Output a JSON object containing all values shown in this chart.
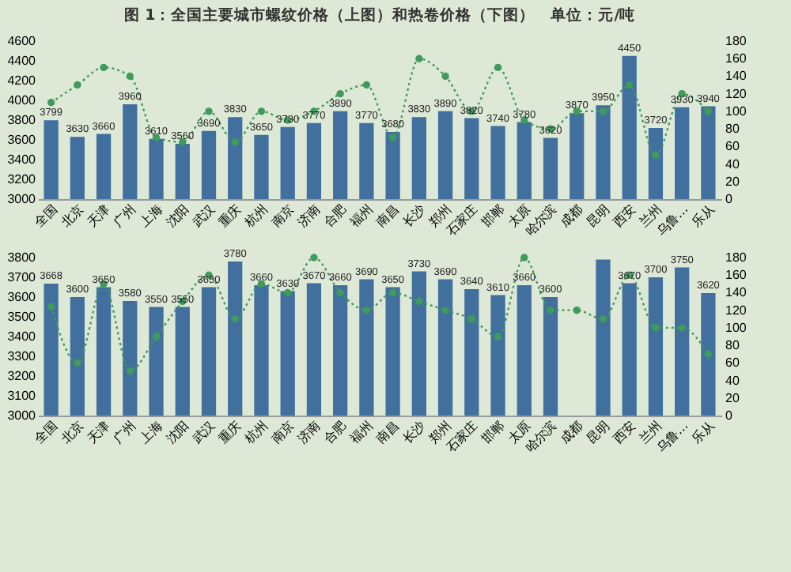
{
  "chart_data": [
    {
      "type": "bar",
      "title": "图 1：全国主要城市螺纹价格（上图）和热卷价格（下图）　单位：元/吨",
      "categories": [
        "全国",
        "北京",
        "天津",
        "广州",
        "上海",
        "沈阳",
        "武汉",
        "重庆",
        "杭州",
        "南京",
        "济南",
        "合肥",
        "福州",
        "南昌",
        "长沙",
        "郑州",
        "石家庄",
        "邯郸",
        "太原",
        "哈尔滨",
        "成都",
        "昆明",
        "西安",
        "兰州",
        "乌鲁…",
        "乐从"
      ],
      "series": [
        {
          "color": "#41709f",
          "values": [
            3799,
            3630,
            3660,
            3960,
            3610,
            3560,
            3690,
            3830,
            3650,
            3730,
            3770,
            3890,
            3770,
            3680,
            3830,
            3890,
            3820,
            3740,
            3780,
            3620,
            3870,
            3950,
            4450,
            3720,
            3930,
            3940
          ],
          "data_labels": true
        },
        {
          "type": "line",
          "axis": "y2",
          "color": "#3f9a5c",
          "marker": "circle",
          "line_style": "dotted",
          "values": [
            110,
            130,
            150,
            140,
            70,
            65,
            100,
            65,
            100,
            90,
            100,
            120,
            130,
            70,
            160,
            140,
            100,
            150,
            90,
            80,
            100,
            100,
            130,
            50,
            120,
            100
          ]
        }
      ],
      "ylim": [
        3000,
        4600
      ],
      "yticks": [
        3000,
        3200,
        3400,
        3600,
        3800,
        4000,
        4200,
        4400,
        4600
      ],
      "y2lim": [
        0,
        180
      ],
      "y2ticks": [
        0,
        20,
        40,
        60,
        80,
        100,
        120,
        140,
        160,
        180
      ]
    },
    {
      "type": "bar",
      "categories": [
        "全国",
        "北京",
        "天津",
        "广州",
        "上海",
        "沈阳",
        "武汉",
        "重庆",
        "杭州",
        "南京",
        "济南",
        "合肥",
        "福州",
        "南昌",
        "长沙",
        "郑州",
        "石家庄",
        "邯郸",
        "太原",
        "哈尔滨",
        "成都",
        "昆明",
        "西安",
        "兰州",
        "乌鲁…",
        "乐从"
      ],
      "series": [
        {
          "color": "#41709f",
          "values": [
            3668,
            3600,
            3650,
            3580,
            3550,
            3550,
            3650,
            3780,
            3660,
            3630,
            3670,
            3660,
            3690,
            3650,
            3730,
            3690,
            3640,
            3610,
            3660,
            3600,
            null,
            3790,
            3670,
            3700,
            3750,
            3620
          ],
          "value_labels": [
            "3668",
            "3600",
            "3650",
            "3580",
            "3550",
            "3550",
            "3650",
            "3780",
            "3660",
            "3630",
            "3670",
            "3660",
            "3690",
            "3650",
            "3730",
            "3690",
            "3640",
            "3610",
            "3660",
            "3600",
            null,
            null,
            "3670",
            "3700",
            "3750",
            "3620"
          ]
        },
        {
          "type": "line",
          "axis": "y2",
          "color": "#3f9a5c",
          "marker": "circle",
          "line_style": "dotted",
          "values": [
            124,
            60,
            150,
            51,
            90,
            130,
            160,
            110,
            150,
            140,
            180,
            140,
            120,
            140,
            130,
            120,
            110,
            90,
            180,
            120,
            120,
            110,
            160,
            100,
            100,
            70
          ]
        }
      ],
      "ylim": [
        3000,
        3800
      ],
      "yticks": [
        3000,
        3100,
        3200,
        3300,
        3400,
        3500,
        3600,
        3700,
        3800
      ],
      "y2lim": [
        0,
        180
      ],
      "y2ticks": [
        0,
        20,
        40,
        60,
        80,
        100,
        120,
        140,
        160,
        180
      ]
    }
  ]
}
